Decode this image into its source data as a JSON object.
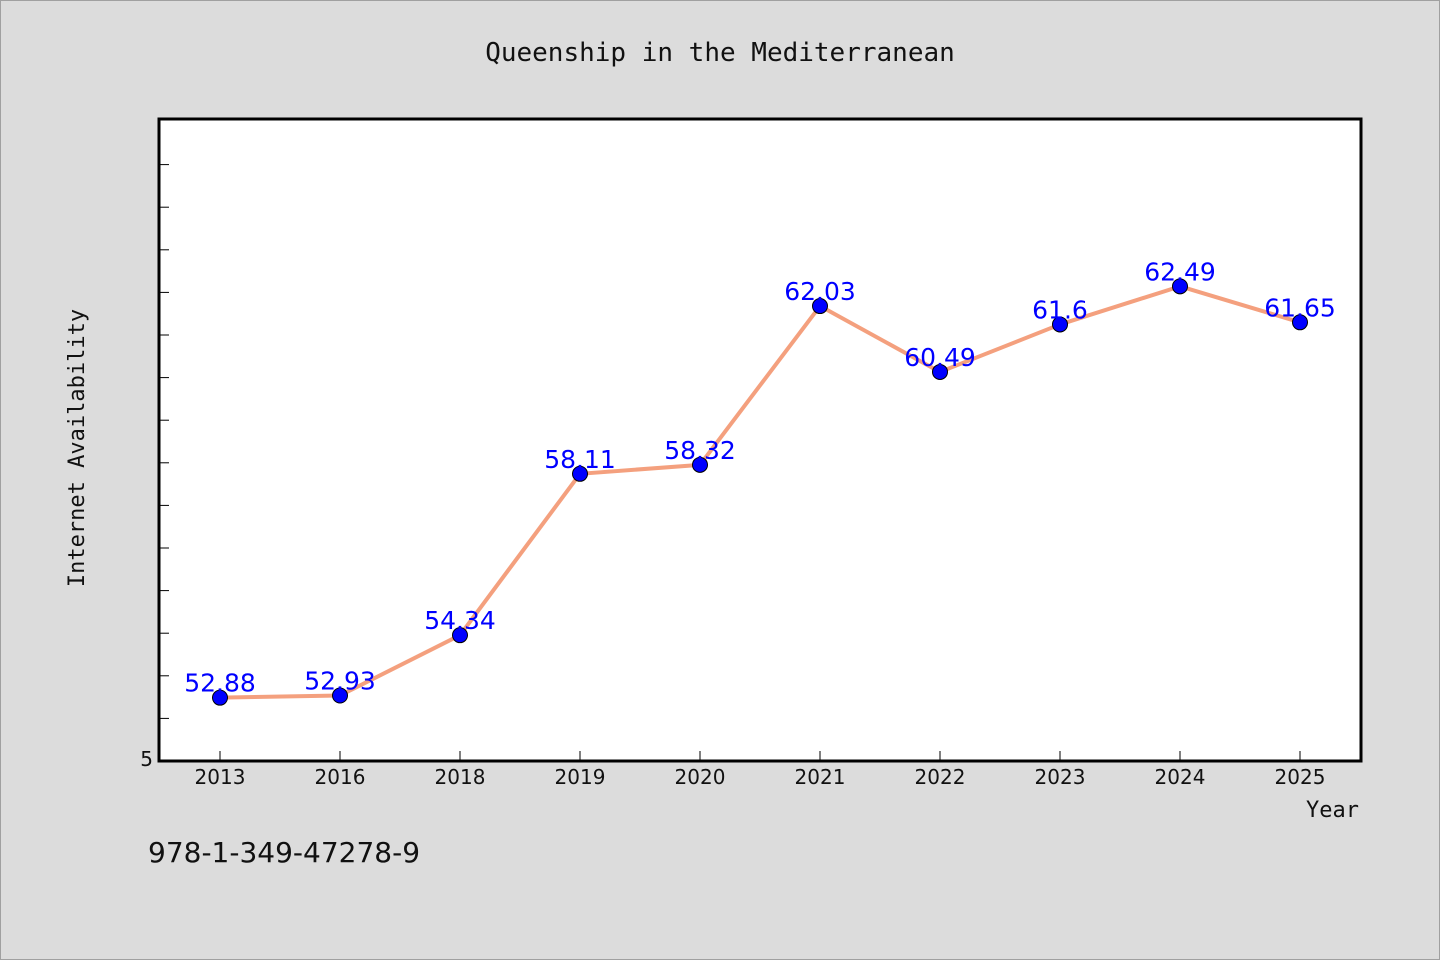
{
  "chart_data": {
    "type": "line",
    "title": "Queenship in the Mediterranean",
    "xlabel": "Year",
    "ylabel": "Internet Availability",
    "categories": [
      "2013",
      "2016",
      "2018",
      "2019",
      "2020",
      "2021",
      "2022",
      "2023",
      "2024",
      "2025"
    ],
    "series": [
      {
        "values": [
          52.88,
          52.93,
          54.34,
          58.11,
          58.32,
          62.03,
          60.49,
          61.6,
          62.49,
          61.65
        ],
        "labels": [
          "52.88",
          "52.93",
          "54.34",
          "58.11",
          "58.32",
          "62.03",
          "60.49",
          "61.6",
          "62.49",
          "61.65"
        ],
        "line_color": "#f4a07e",
        "marker_color": "#0000ff"
      }
    ],
    "ylim": [
      51.4,
      66.4
    ],
    "y_tick_labels": [
      "5"
    ],
    "grid": false,
    "legend": "none"
  },
  "footer": {
    "isbn": "978-1-349-47278-9"
  }
}
